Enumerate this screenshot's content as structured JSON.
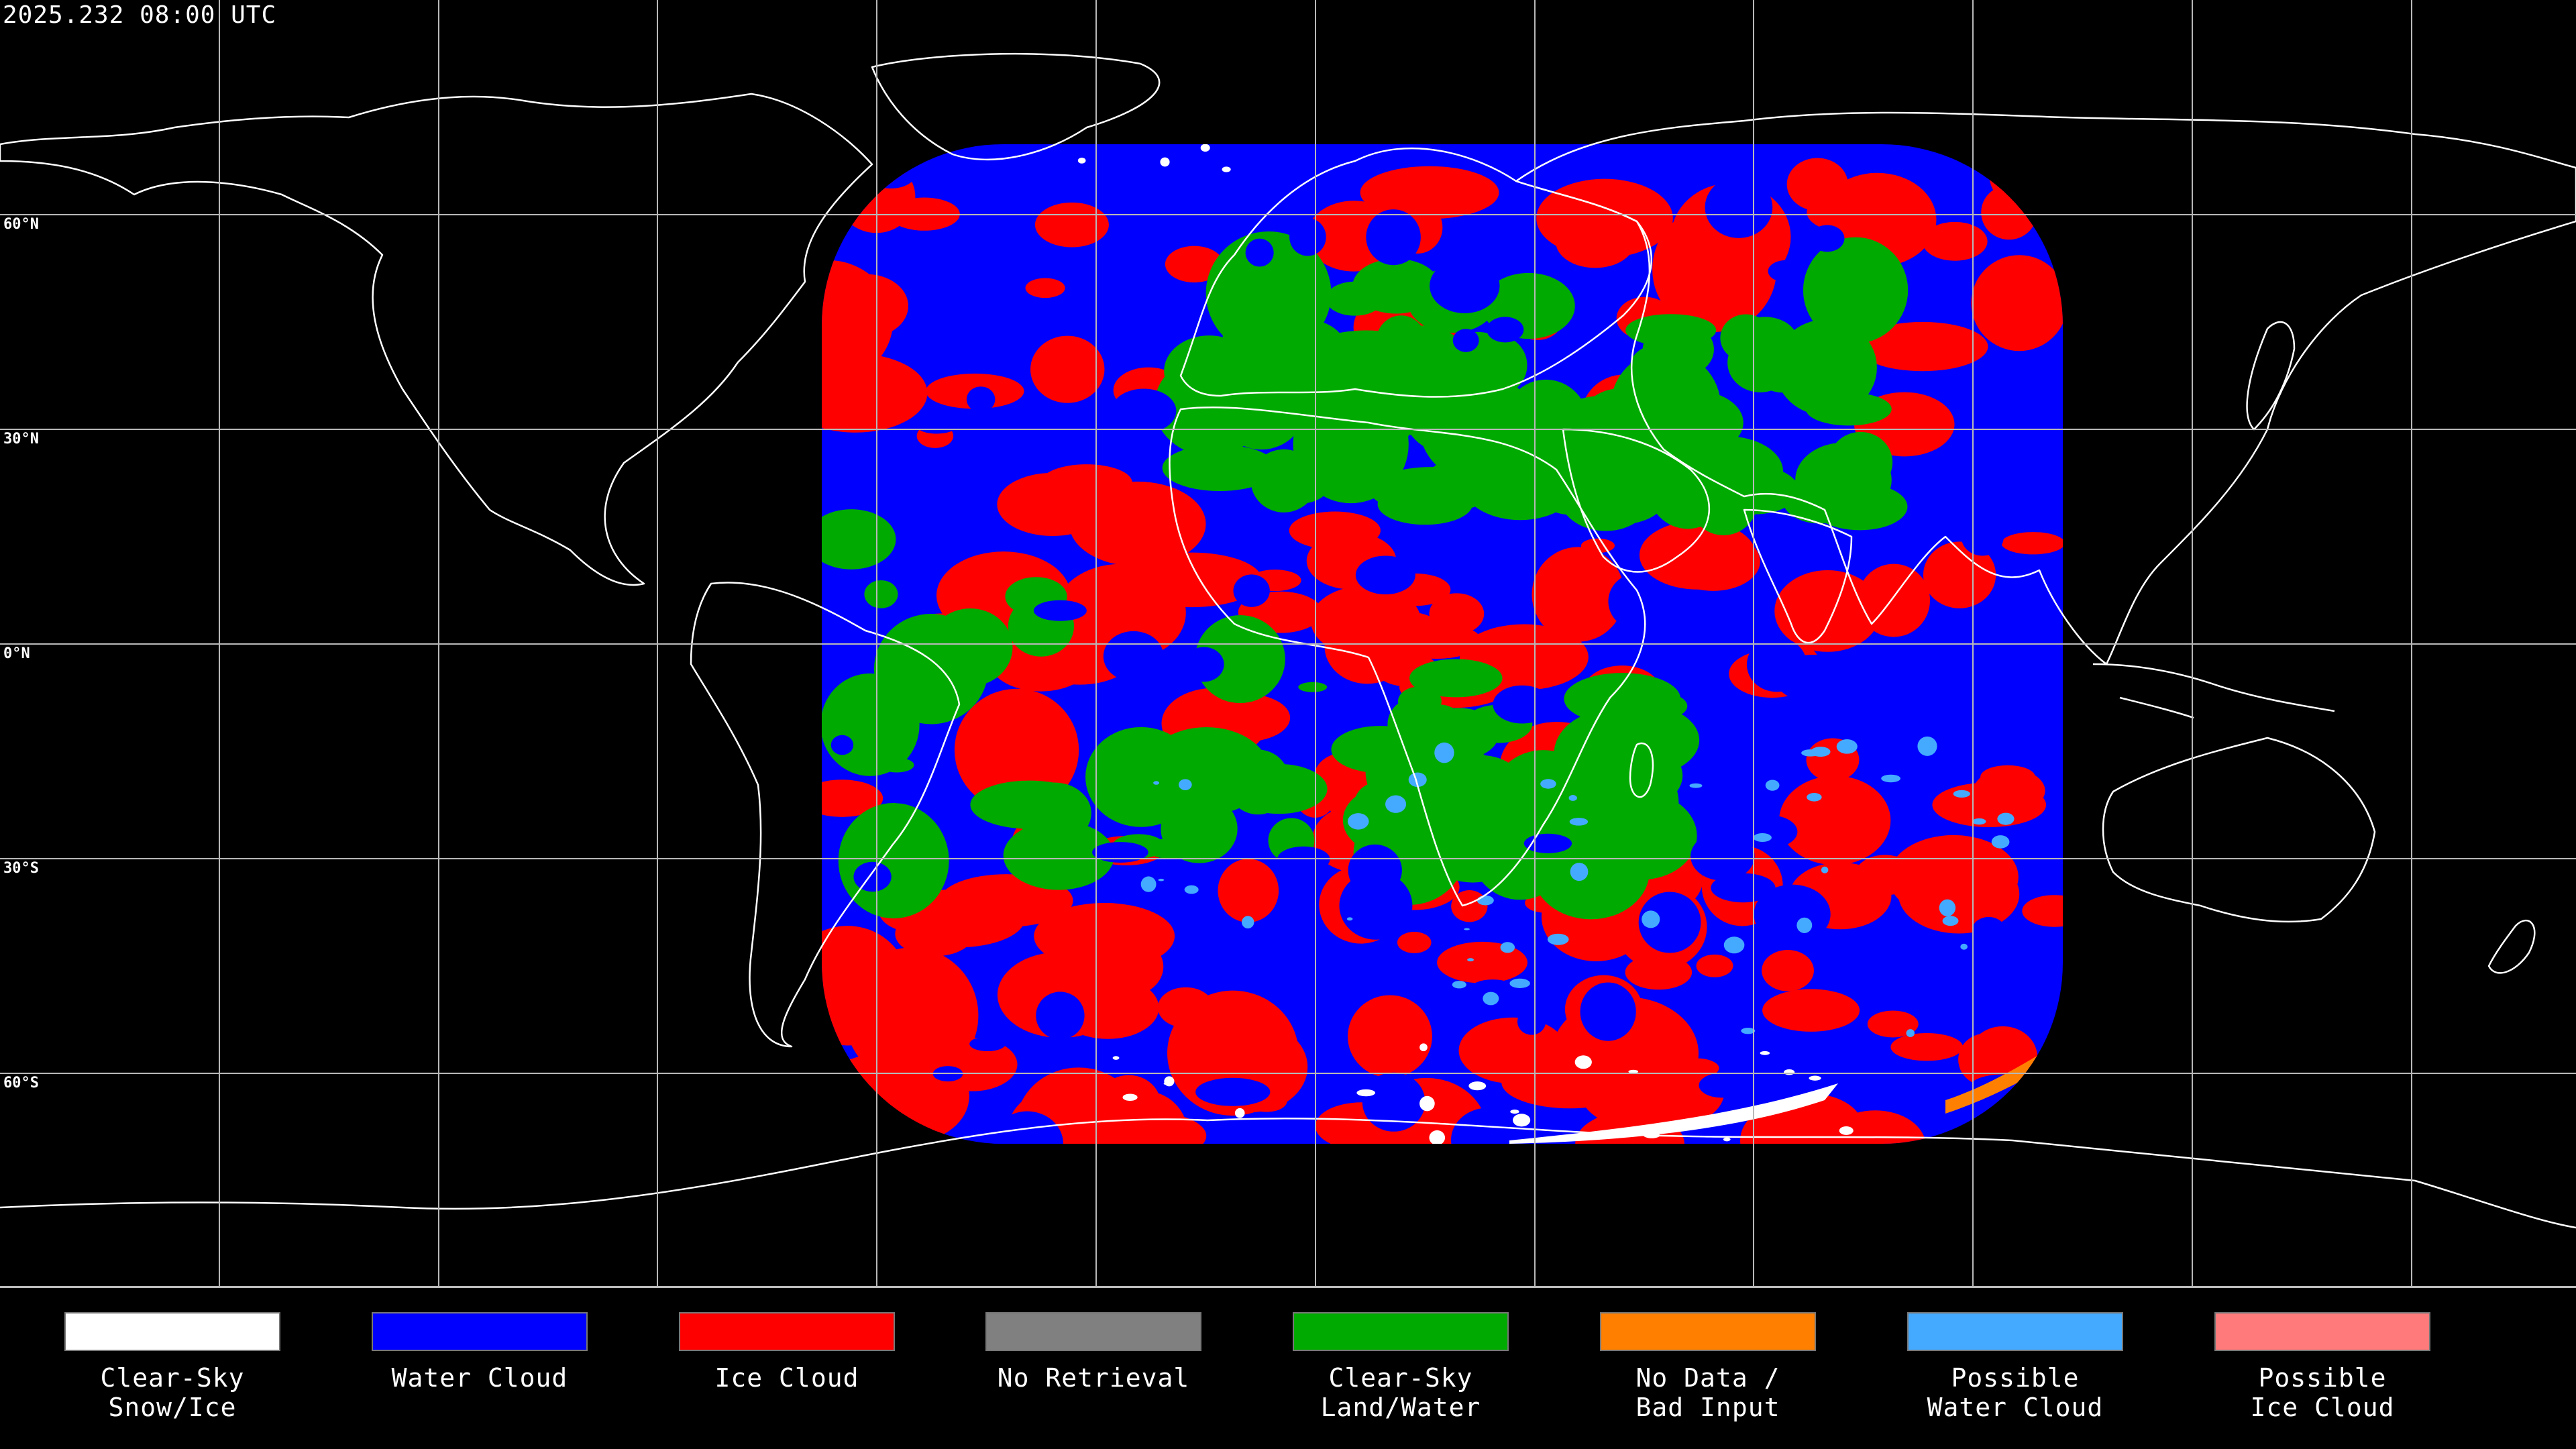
{
  "header": {
    "timestamp": "2025.232 08:00 UTC"
  },
  "map": {
    "latitude_labels": [
      "60°N",
      "30°N",
      "0°N",
      "30°S",
      "60°S"
    ],
    "grid_color": "#b8b8b8",
    "coastline_color": "#ffffff",
    "background_color": "#000000"
  },
  "legend": {
    "items": [
      {
        "label": "Clear-Sky\nSnow/Ice",
        "color": "#ffffff"
      },
      {
        "label": "Water Cloud",
        "color": "#0000ff"
      },
      {
        "label": "Ice Cloud",
        "color": "#ff0000"
      },
      {
        "label": "No Retrieval",
        "color": "#808080"
      },
      {
        "label": "Clear-Sky\nLand/Water",
        "color": "#00aa00"
      },
      {
        "label": "No Data /\nBad Input",
        "color": "#ff8000"
      },
      {
        "label": "Possible\nWater Cloud",
        "color": "#44aaff"
      },
      {
        "label": "Possible\nIce Cloud",
        "color": "#ff7a7a"
      }
    ]
  }
}
